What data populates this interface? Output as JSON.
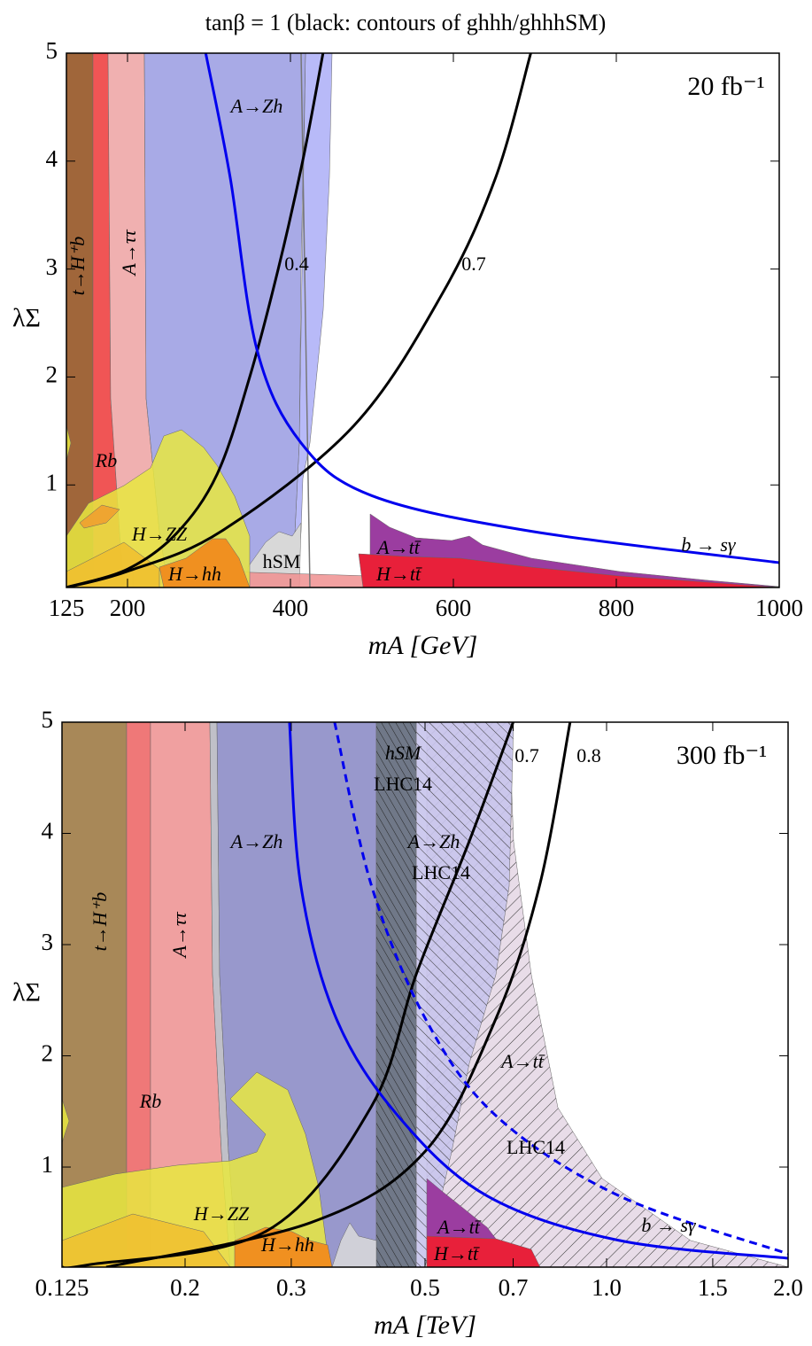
{
  "chart_data": [
    {
      "type": "line",
      "title": "tanβ = 1  (black: contours of  ghhh/ghhhSM)",
      "luminosity": "20 fb⁻¹",
      "xlabel": "mA [GeV]",
      "ylabel": "λΣ",
      "xscale": "linear",
      "xlim": [
        125,
        1000
      ],
      "ylim": [
        0.05,
        5
      ],
      "xticks": [
        125,
        200,
        400,
        600,
        800,
        1000
      ],
      "yticks": [
        1,
        2,
        3,
        4,
        5
      ],
      "series": [
        {
          "name": "0.4",
          "color": "#000000",
          "x": [
            125,
            200,
            260,
            310,
            350,
            385,
            415,
            440
          ],
          "y": [
            0.05,
            0.22,
            0.55,
            1.1,
            2.0,
            3.0,
            4.0,
            5.0
          ]
        },
        {
          "name": "0.7",
          "color": "#000000",
          "x": [
            125,
            200,
            315,
            478,
            587,
            652,
            695
          ],
          "y": [
            0.05,
            0.2,
            0.57,
            1.55,
            2.78,
            3.85,
            5.0
          ]
        },
        {
          "name": "b → sγ",
          "color": "#0000ee",
          "x": [
            296,
            326,
            359,
            413,
            500,
            696,
            1000
          ],
          "y": [
            5.0,
            3.85,
            2.25,
            1.39,
            0.9,
            0.57,
            0.28
          ]
        }
      ],
      "annotations": [
        "t→H⁺b",
        "A→ττ",
        "A→Zh",
        "Rb",
        "H→ZZ",
        "H→hh",
        "hSM",
        "A→tt̄",
        "H→tt̄"
      ]
    },
    {
      "type": "line",
      "luminosity": "300 fb⁻¹",
      "xlabel": "mA [TeV]",
      "ylabel": "λΣ",
      "xscale": "log",
      "xlim": [
        0.125,
        2.0
      ],
      "ylim": [
        0.1,
        5
      ],
      "xticks": [
        0.125,
        0.2,
        0.3,
        0.5,
        0.7,
        {
          "value": 1.0,
          "label": "1.0"
        },
        1.5,
        {
          "value": 2.0,
          "label": "2.0"
        }
      ],
      "yticks": [
        1,
        2,
        3,
        4,
        5
      ],
      "series": [
        {
          "name": "0.7",
          "color": "#000000",
          "x": [
            0.125,
            0.138,
            0.272,
            0.407,
            0.484,
            0.593,
            0.7
          ],
          "y": [
            0.1,
            0.12,
            0.42,
            1.54,
            2.74,
            3.94,
            5.0
          ]
        },
        {
          "name": "0.8",
          "color": "#000000",
          "x": [
            0.148,
            0.323,
            0.5,
            0.656,
            0.775,
            0.87
          ],
          "y": [
            0.1,
            0.5,
            1.14,
            2.34,
            3.54,
            5.0
          ]
        },
        {
          "name": "b → sγ",
          "color": "#0000ee",
          "x": [
            0.298,
            0.311,
            0.356,
            0.451,
            0.634,
            1.05,
            2.0
          ],
          "y": [
            5.0,
            3.54,
            2.34,
            1.46,
            0.74,
            0.34,
            0.18
          ]
        },
        {
          "color": "#0000ee",
          "dash": true,
          "x": [
            0.354,
            0.407,
            0.5,
            0.656,
            1.05,
            2.0
          ],
          "y": [
            5.0,
            3.54,
            2.34,
            1.46,
            0.74,
            0.22
          ]
        }
      ],
      "annotations": [
        "t→H⁺b",
        "A→ττ",
        "Rb",
        "A→Zh",
        "hSM",
        "LHC14",
        "A→Zh",
        "LHC14",
        "A→tt̄",
        "LHC14",
        "H→ZZ",
        "H→hh",
        "A→tt̄",
        "H→tt̄"
      ]
    }
  ]
}
